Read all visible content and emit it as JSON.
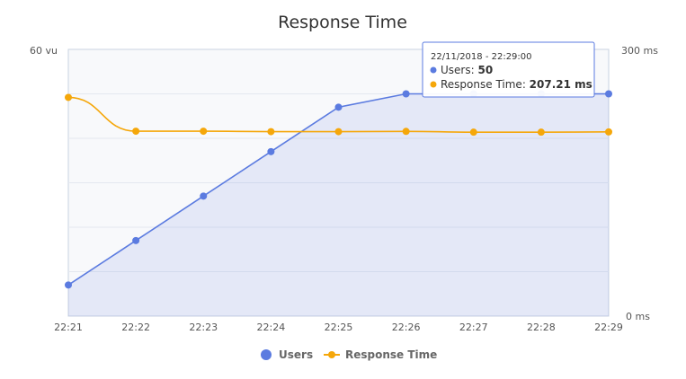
{
  "chart_data": {
    "type": "line",
    "title": "Response Time",
    "x": [
      "22:21",
      "22:22",
      "22:23",
      "22:24",
      "22:25",
      "22:26",
      "22:27",
      "22:28",
      "22:29"
    ],
    "y_left": {
      "max_label": "60 vu",
      "min_label": "",
      "ylim": [
        0,
        60
      ]
    },
    "y_right": {
      "max_label": "300 ms",
      "min_label": "0 ms",
      "ylim": [
        0,
        300
      ]
    },
    "grid": true,
    "legend_position": "bottom",
    "series": [
      {
        "name": "Users",
        "axis": "left",
        "type": "area",
        "color": "#5b7be0",
        "values": [
          7,
          17,
          27,
          37,
          47,
          50,
          50,
          50,
          50
        ]
      },
      {
        "name": "Response Time",
        "axis": "right",
        "type": "line",
        "color": "#f5a70a",
        "values": [
          246,
          208,
          208,
          207.5,
          207.5,
          207.8,
          206.9,
          206.9,
          207.21
        ]
      }
    ],
    "tooltip": {
      "header": "22/11/2018 - 22:29:00",
      "rows": [
        {
          "label": "Users: ",
          "value": "50",
          "color": "#5b7be0"
        },
        {
          "label": "Response Time: ",
          "value": "207.21 ms",
          "color": "#f5a70a"
        }
      ]
    }
  }
}
